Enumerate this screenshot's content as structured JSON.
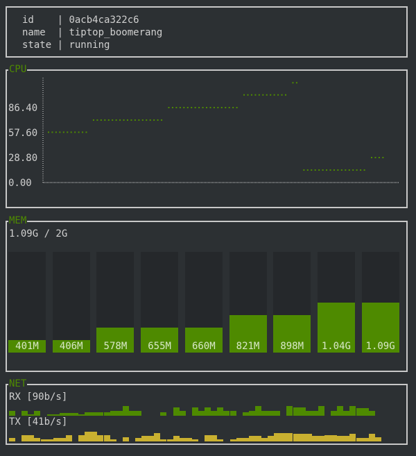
{
  "info": {
    "rows": [
      {
        "key": "id   ",
        "value": "0acb4ca322c6"
      },
      {
        "key": "name ",
        "value": "tiptop_boomerang"
      },
      {
        "key": "state",
        "value": "running"
      }
    ]
  },
  "cpu": {
    "title": "CPU",
    "chart_data": {
      "type": "scatter",
      "yticks": [
        "0.00",
        "28.80",
        "57.60",
        "86.40"
      ],
      "ylim": [
        0,
        130
      ],
      "segments": [
        {
          "y": 58,
          "n": 11
        },
        {
          "y": 72,
          "n": 19
        },
        {
          "y": 86.4,
          "n": 19
        },
        {
          "y": 101,
          "n": 12
        },
        {
          "y": 115,
          "n": 2
        },
        {
          "y": 14.4,
          "n": 17
        },
        {
          "y": 28.8,
          "n": 4
        }
      ]
    }
  },
  "mem": {
    "title": "MEM",
    "summary": "1.09G / 2G",
    "total_mb": 2048,
    "bars": [
      {
        "label": "401M",
        "mb": 401
      },
      {
        "label": "406M",
        "mb": 406
      },
      {
        "label": "578M",
        "mb": 578
      },
      {
        "label": "655M",
        "mb": 655
      },
      {
        "label": "660M",
        "mb": 660
      },
      {
        "label": "821M",
        "mb": 821
      },
      {
        "label": "898M",
        "mb": 898
      },
      {
        "label": "1.04G",
        "mb": 1065
      },
      {
        "label": "1.09G",
        "mb": 1116
      }
    ]
  },
  "net": {
    "title": "NET",
    "rx_label": "RX [90b/s]",
    "tx_label": "TX [41b/s]",
    "rx": [
      4,
      0,
      4,
      1,
      4,
      0,
      1,
      1,
      2,
      2,
      2,
      1,
      3,
      3,
      3,
      3,
      4,
      4,
      8,
      4,
      4,
      0,
      0,
      0,
      3,
      0,
      7,
      4,
      0,
      7,
      4,
      7,
      4,
      7,
      4,
      4,
      0,
      3,
      4,
      8,
      4,
      4,
      4,
      0,
      8,
      7,
      7,
      4,
      4,
      8,
      0,
      4,
      8,
      4,
      8,
      6,
      6,
      4,
      0,
      0
    ],
    "tx": [
      3,
      0,
      6,
      6,
      3,
      2,
      2,
      3,
      3,
      6,
      0,
      6,
      9,
      9,
      6,
      6,
      2,
      0,
      4,
      0,
      3,
      5,
      5,
      8,
      2,
      2,
      5,
      3,
      3,
      2,
      0,
      6,
      6,
      2,
      0,
      2,
      3,
      3,
      5,
      5,
      3,
      5,
      8,
      8,
      8,
      7,
      7,
      7,
      5,
      5,
      6,
      6,
      5,
      5,
      7,
      3,
      3,
      7,
      4,
      0
    ],
    "colors": {
      "rx": "#4e8a00",
      "tx": "#c9b030"
    }
  }
}
